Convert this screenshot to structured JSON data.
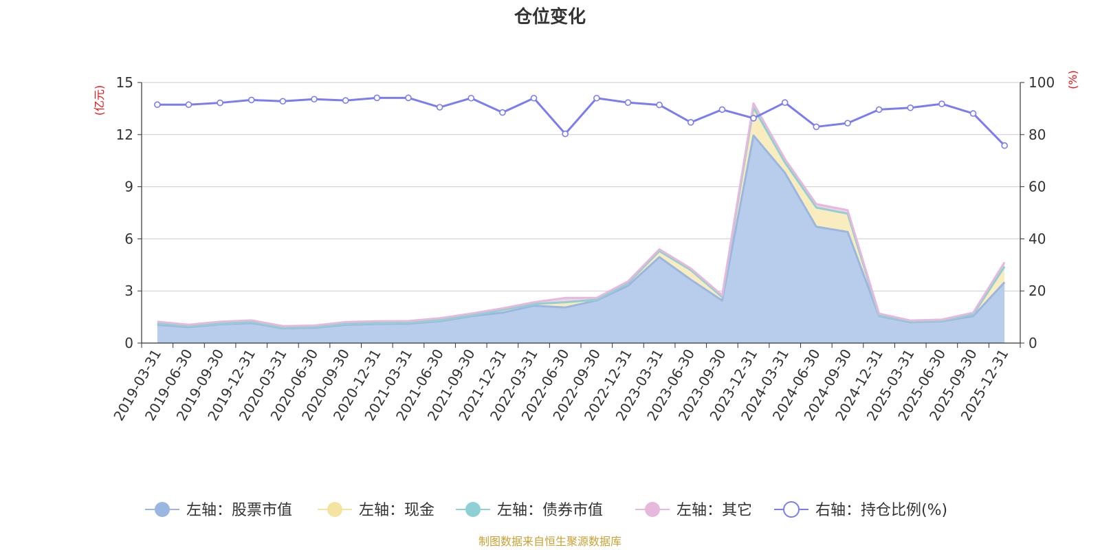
{
  "chart_data": {
    "type": "area",
    "title": "仓位变化",
    "ylabel_left": "(亿元)",
    "ylabel_right": "(%)",
    "ylim_left": [
      0,
      15
    ],
    "ylim_right": [
      0,
      100
    ],
    "yticks_left": [
      "0",
      "3",
      "6",
      "9",
      "12",
      "15"
    ],
    "yticks_right": [
      "0",
      "20",
      "40",
      "60",
      "80",
      "100"
    ],
    "grid": true,
    "legend_position": "bottom",
    "categories": [
      "2019-03-31",
      "2019-06-30",
      "2019-09-30",
      "2019-12-31",
      "2020-03-31",
      "2020-06-30",
      "2020-09-30",
      "2020-12-31",
      "2021-03-31",
      "2021-06-30",
      "2021-09-30",
      "2021-12-31",
      "2022-03-31",
      "2022-06-30",
      "2022-09-30",
      "2022-12-31",
      "2023-03-31",
      "2023-06-30",
      "2023-09-30",
      "2023-12-31",
      "2024-03-31",
      "2024-06-30",
      "2024-09-30",
      "2024-12-31",
      "2025-03-31",
      "2025-06-30",
      "2025-09-30",
      "2025-12-31"
    ],
    "series": [
      {
        "name": "左轴：股票市值",
        "axis": "left",
        "color": "#9bb6e0",
        "fill": "#b8cdeb",
        "values": [
          1.05,
          0.92,
          1.08,
          1.15,
          0.85,
          0.88,
          1.05,
          1.1,
          1.12,
          1.25,
          1.55,
          1.75,
          2.15,
          2.05,
          2.45,
          3.3,
          4.95,
          3.65,
          2.45,
          11.95,
          9.8,
          6.7,
          6.4,
          1.55,
          1.2,
          1.25,
          1.55,
          3.5
        ]
      },
      {
        "name": "左轴：现金",
        "axis": "left",
        "color": "#f5e3a2",
        "fill": "#f9ecbf",
        "values": [
          0.08,
          0.06,
          0.05,
          0.06,
          0.05,
          0.05,
          0.06,
          0.06,
          0.05,
          0.06,
          0.05,
          0.15,
          0.1,
          0.3,
          0.05,
          0.15,
          0.35,
          0.55,
          0.2,
          1.6,
          0.6,
          1.1,
          1.05,
          0.05,
          0.05,
          0.05,
          0.1,
          0.9
        ]
      },
      {
        "name": "左轴：债券市值",
        "axis": "left",
        "color": "#8fd0d4",
        "fill": "#bfe5e7",
        "values": [
          0,
          0,
          0,
          0,
          0,
          0,
          0,
          0,
          0,
          0,
          0,
          0,
          0,
          0,
          0,
          0,
          0,
          0,
          0,
          0,
          0,
          0,
          0,
          0,
          0,
          0,
          0,
          0
        ]
      },
      {
        "name": "左轴：其它",
        "axis": "left",
        "color": "#e5b8dc",
        "fill": "#efd0e8",
        "values": [
          0.1,
          0.08,
          0.1,
          0.1,
          0.08,
          0.08,
          0.1,
          0.1,
          0.1,
          0.12,
          0.1,
          0.1,
          0.1,
          0.25,
          0.1,
          0.1,
          0.1,
          0.1,
          0.1,
          0.25,
          0.2,
          0.2,
          0.2,
          0.1,
          0.05,
          0.05,
          0.1,
          0.25
        ]
      },
      {
        "name": "右轴：持仓比例(%)",
        "axis": "right",
        "color": "#7b7cf0",
        "values": [
          91.5,
          91.5,
          92.2,
          93.3,
          92.8,
          93.6,
          93.1,
          94.1,
          94.1,
          90.5,
          94,
          88.5,
          94,
          80.3,
          94,
          92.3,
          91.4,
          84.7,
          89.6,
          86.3,
          92.3,
          83,
          84.4,
          89.6,
          90.3,
          91.8,
          88.1,
          75.8
        ]
      }
    ]
  },
  "footer": {
    "source": "制图数据来自恒生聚源数据库"
  },
  "colors": {
    "title": "#333333",
    "axis_label": "#ee1111",
    "grid": "#cccccc",
    "axis_line": "#333333",
    "footer": "#c9a034"
  }
}
